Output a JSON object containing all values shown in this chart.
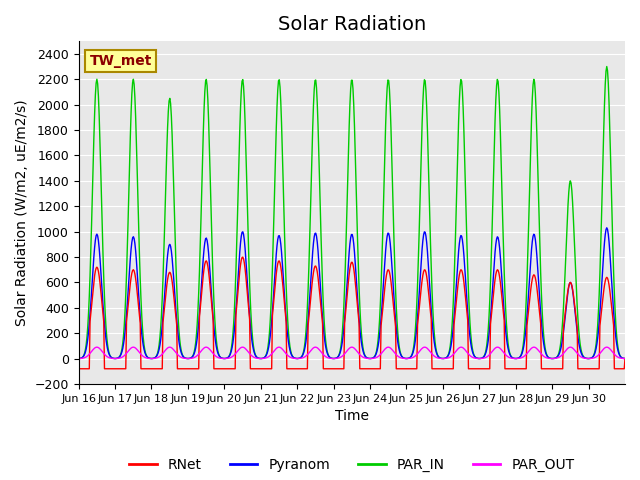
{
  "title": "Solar Radiation",
  "ylabel": "Solar Radiation (W/m2, uE/m2/s)",
  "xlabel": "Time",
  "ylim": [
    -200,
    2500
  ],
  "yticks": [
    -200,
    0,
    200,
    400,
    600,
    800,
    1000,
    1200,
    1400,
    1600,
    1800,
    2000,
    2200,
    2400
  ],
  "x_labels": [
    "Jun 16",
    "Jun 17",
    "Jun 18",
    "Jun 19",
    "Jun 20",
    "Jun 21",
    "Jun 22",
    "Jun 23",
    "Jun 24",
    "Jun 25",
    "Jun 26",
    "Jun 27",
    "Jun 28",
    "Jun 29",
    "Jun 30"
  ],
  "annotation_text": "TW_met",
  "annotation_color": "#8B0000",
  "annotation_bg": "#FFFF99",
  "colors": {
    "RNet": "#FF0000",
    "Pyranom": "#0000FF",
    "PAR_IN": "#00CC00",
    "PAR_OUT": "#FF00FF"
  },
  "background_color": "#E8E8E8",
  "grid_color": "#FFFFFF",
  "title_fontsize": 14,
  "label_fontsize": 10,
  "par_in_peaks": [
    2200,
    2200,
    2050,
    2200,
    2200,
    2200,
    2200,
    2200,
    2200,
    2200,
    2200,
    2200,
    2200,
    1400,
    2300
  ],
  "pyranom_peaks": [
    980,
    960,
    900,
    950,
    1000,
    970,
    990,
    980,
    990,
    1000,
    970,
    960,
    980,
    600,
    1030
  ],
  "rnet_peaks": [
    720,
    700,
    680,
    770,
    800,
    770,
    730,
    760,
    700,
    700,
    700,
    700,
    660,
    600,
    640
  ],
  "n_days": 15,
  "pts_per_day": 48
}
